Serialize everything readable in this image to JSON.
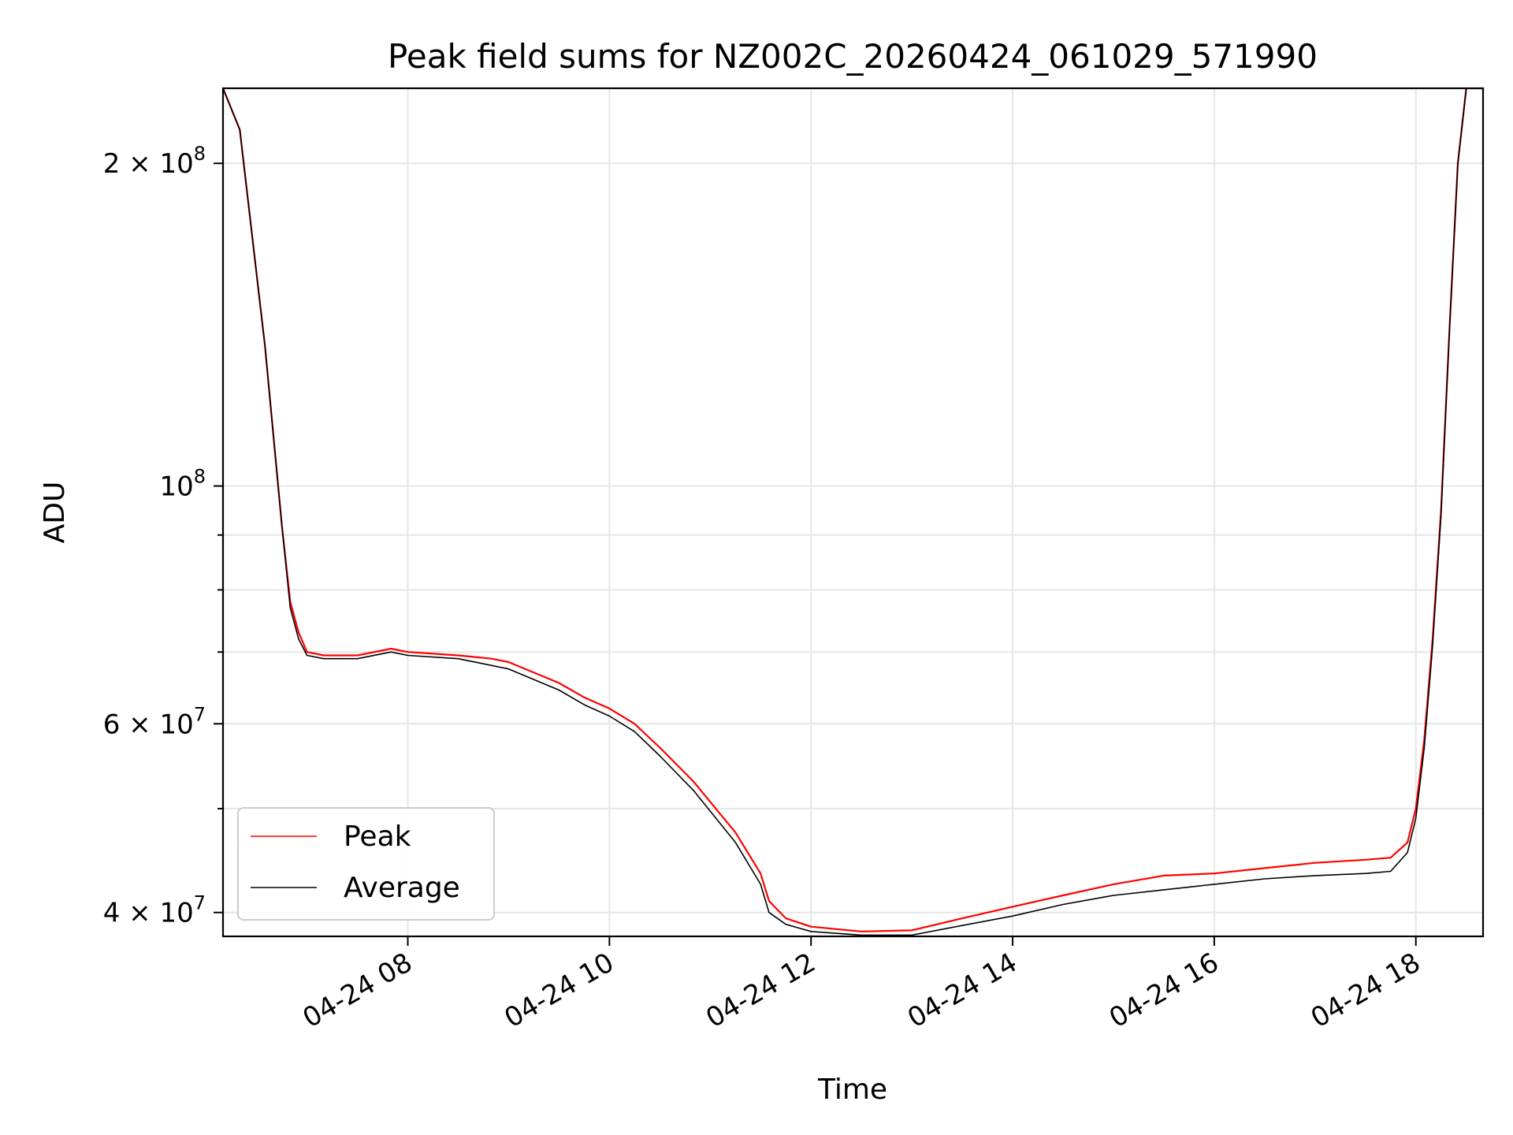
{
  "chart_data": {
    "type": "line",
    "title": "Peak field sums for NZ002C_20260424_061029_571990",
    "xlabel": "Time",
    "ylabel": "ADU",
    "yscale": "log",
    "grid": true,
    "legend_position": "lower-left",
    "xlim": [
      "2026-04-24 06:10",
      "2026-04-24 18:40"
    ],
    "ylim": [
      38000000,
      235000000
    ],
    "x_ticks": [
      {
        "value": "2026-04-24 08:00",
        "label": "04-24 08"
      },
      {
        "value": "2026-04-24 10:00",
        "label": "04-24 10"
      },
      {
        "value": "2026-04-24 12:00",
        "label": "04-24 12"
      },
      {
        "value": "2026-04-24 14:00",
        "label": "04-24 14"
      },
      {
        "value": "2026-04-24 16:00",
        "label": "04-24 16"
      },
      {
        "value": "2026-04-24 18:00",
        "label": "04-24 18"
      }
    ],
    "y_ticks_major": [
      {
        "value": 40000000,
        "label": "4 × 10",
        "exp": "7"
      },
      {
        "value": 60000000,
        "label": "6 × 10",
        "exp": "7"
      },
      {
        "value": 100000000,
        "label": "10",
        "exp": "8"
      },
      {
        "value": 200000000,
        "label": "2 × 10",
        "exp": "8"
      }
    ],
    "y_grid_minor": [
      50000000,
      70000000,
      80000000,
      90000000
    ],
    "series": [
      {
        "name": "Peak",
        "color": "#ff0000",
        "x": [
          "2026-04-24 06:10",
          "2026-04-24 06:20",
          "2026-04-24 06:35",
          "2026-04-24 06:45",
          "2026-04-24 06:50",
          "2026-04-24 06:55",
          "2026-04-24 07:00",
          "2026-04-24 07:10",
          "2026-04-24 07:30",
          "2026-04-24 07:50",
          "2026-04-24 08:00",
          "2026-04-24 08:30",
          "2026-04-24 08:50",
          "2026-04-24 09:00",
          "2026-04-24 09:30",
          "2026-04-24 09:45",
          "2026-04-24 10:00",
          "2026-04-24 10:15",
          "2026-04-24 10:30",
          "2026-04-24 10:50",
          "2026-04-24 11:15",
          "2026-04-24 11:30",
          "2026-04-24 11:35",
          "2026-04-24 11:45",
          "2026-04-24 12:00",
          "2026-04-24 12:30",
          "2026-04-24 13:00",
          "2026-04-24 13:30",
          "2026-04-24 14:00",
          "2026-04-24 14:30",
          "2026-04-24 15:00",
          "2026-04-24 15:30",
          "2026-04-24 16:00",
          "2026-04-24 16:30",
          "2026-04-24 17:00",
          "2026-04-24 17:30",
          "2026-04-24 17:45",
          "2026-04-24 17:55",
          "2026-04-24 18:00",
          "2026-04-24 18:05",
          "2026-04-24 18:10",
          "2026-04-24 18:15",
          "2026-04-24 18:20",
          "2026-04-24 18:25",
          "2026-04-24 18:30",
          "2026-04-24 18:40"
        ],
        "values": [
          235000000,
          215000000,
          135000000,
          92000000,
          78000000,
          73000000,
          70000000,
          69500000,
          69500000,
          70500000,
          70000000,
          69500000,
          69000000,
          68500000,
          65500000,
          63500000,
          62000000,
          60000000,
          57000000,
          53000000,
          47500000,
          43500000,
          41000000,
          39500000,
          38800000,
          38400000,
          38500000,
          39500000,
          40500000,
          41500000,
          42500000,
          43300000,
          43500000,
          44000000,
          44500000,
          44800000,
          45000000,
          46500000,
          50000000,
          58000000,
          72000000,
          95000000,
          140000000,
          200000000,
          235000000,
          235000000
        ]
      },
      {
        "name": "Average",
        "color": "#000000",
        "x": [
          "2026-04-24 06:10",
          "2026-04-24 06:20",
          "2026-04-24 06:35",
          "2026-04-24 06:45",
          "2026-04-24 06:50",
          "2026-04-24 06:55",
          "2026-04-24 07:00",
          "2026-04-24 07:10",
          "2026-04-24 07:30",
          "2026-04-24 07:50",
          "2026-04-24 08:00",
          "2026-04-24 08:30",
          "2026-04-24 08:50",
          "2026-04-24 09:00",
          "2026-04-24 09:30",
          "2026-04-24 09:45",
          "2026-04-24 10:00",
          "2026-04-24 10:15",
          "2026-04-24 10:30",
          "2026-04-24 10:50",
          "2026-04-24 11:15",
          "2026-04-24 11:30",
          "2026-04-24 11:35",
          "2026-04-24 11:45",
          "2026-04-24 12:00",
          "2026-04-24 12:30",
          "2026-04-24 13:00",
          "2026-04-24 13:30",
          "2026-04-24 14:00",
          "2026-04-24 14:30",
          "2026-04-24 15:00",
          "2026-04-24 15:30",
          "2026-04-24 16:00",
          "2026-04-24 16:30",
          "2026-04-24 17:00",
          "2026-04-24 17:30",
          "2026-04-24 17:45",
          "2026-04-24 17:55",
          "2026-04-24 18:00",
          "2026-04-24 18:05",
          "2026-04-24 18:10",
          "2026-04-24 18:15",
          "2026-04-24 18:20",
          "2026-04-24 18:25",
          "2026-04-24 18:30",
          "2026-04-24 18:40"
        ],
        "values": [
          235000000,
          215000000,
          135000000,
          92000000,
          77000000,
          72000000,
          69500000,
          69000000,
          69000000,
          70000000,
          69500000,
          69000000,
          68000000,
          67500000,
          64500000,
          62500000,
          61000000,
          59000000,
          56000000,
          52000000,
          46500000,
          42500000,
          40000000,
          39000000,
          38400000,
          38100000,
          38100000,
          38900000,
          39700000,
          40700000,
          41500000,
          42000000,
          42500000,
          43000000,
          43300000,
          43500000,
          43700000,
          45500000,
          49000000,
          57000000,
          71000000,
          94000000,
          140000000,
          200000000,
          235000000,
          235000000
        ]
      }
    ]
  }
}
